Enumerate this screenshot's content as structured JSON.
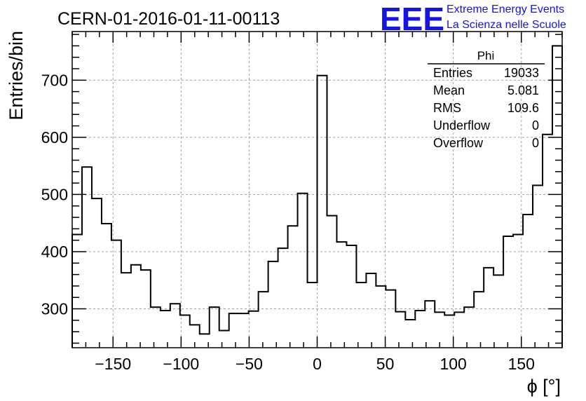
{
  "header": {
    "title": "CERN-01-2016-01-11-00113",
    "logo_letters": "EEE",
    "logo_line1": "Extreme Energy Events",
    "logo_line2": "La Scienza nelle Scuole"
  },
  "stats_box": {
    "title": "Phi",
    "rows": [
      {
        "label": "Entries",
        "value": "19033"
      },
      {
        "label": "Mean",
        "value": "5.081"
      },
      {
        "label": "RMS",
        "value": "109.6"
      },
      {
        "label": "Underflow",
        "value": "0"
      },
      {
        "label": "Overflow",
        "value": "0"
      }
    ]
  },
  "chart_data": {
    "type": "histogram",
    "title": "CERN-01-2016-01-11-00113",
    "xlabel": "ϕ [°]",
    "ylabel": "Entries/bin",
    "xlim": [
      -180,
      180
    ],
    "ylim": [
      232,
      785
    ],
    "grid": true,
    "bin_width": 7.2,
    "bin_edges_start": -180,
    "xticks": [
      -150,
      -100,
      -50,
      0,
      50,
      100,
      150
    ],
    "xtick_labels": [
      "−150",
      "−100",
      "−50",
      "0",
      "50",
      "100",
      "150"
    ],
    "yticks": [
      300,
      400,
      500,
      600,
      700
    ],
    "ytick_labels": [
      "300",
      "400",
      "500",
      "600",
      "700"
    ],
    "values": [
      430,
      548,
      493,
      449,
      420,
      363,
      377,
      368,
      303,
      297,
      309,
      289,
      272,
      256,
      303,
      262,
      292,
      292,
      296,
      330,
      383,
      406,
      445,
      502,
      346,
      708,
      463,
      417,
      411,
      346,
      362,
      340,
      333,
      295,
      281,
      297,
      314,
      294,
      289,
      294,
      303,
      330,
      372,
      359,
      427,
      430,
      465,
      516,
      605,
      760
    ]
  }
}
